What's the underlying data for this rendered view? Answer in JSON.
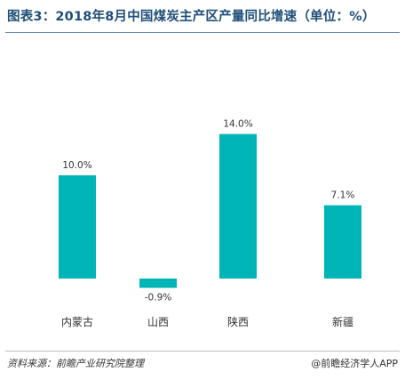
{
  "title": "图表3：2018年8月中国煤炭主产区产量同比增速（单位：%）",
  "footer": {
    "source": "资料来源：前瞻产业研究院整理",
    "brand": "@前瞻经济学人APP"
  },
  "colors": {
    "bar": "#00b5b8",
    "title": "#1f4e79",
    "text": "#333333"
  },
  "chart_data": {
    "type": "bar",
    "categories": [
      "内蒙古",
      "山西",
      "陕西",
      "新疆"
    ],
    "values": [
      10.0,
      -0.9,
      14.0,
      7.1
    ],
    "value_labels": [
      "10.0%",
      "-0.9%",
      "14.0%",
      "7.1%"
    ],
    "title": "图表3：2018年8月中国煤炭主产区产量同比增速（单位：%）",
    "xlabel": "",
    "ylabel": "",
    "ylim": [
      -1.5,
      15
    ],
    "grid": false,
    "legend": "none"
  }
}
